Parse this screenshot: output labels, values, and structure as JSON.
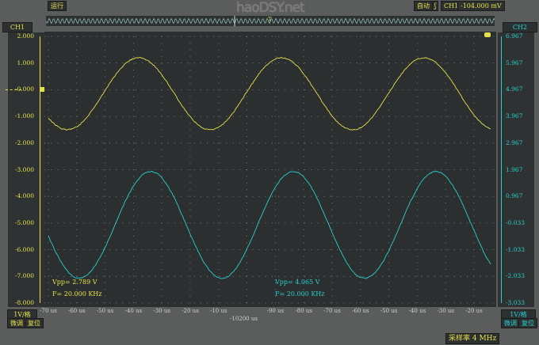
{
  "toolbar": {
    "run_label": "运行",
    "logo_text": "haoDSY.net",
    "trigger_mode": "自动",
    "trigger_edge_icon": "rising-edge-icon",
    "trigger_source": "CH1",
    "trigger_level": "-104.000 mV"
  },
  "ch1": {
    "label": "CH1",
    "scale": "1V/格",
    "fine_label": "微调",
    "reset_label": "复位",
    "color": "#e6e14a",
    "ticks": [
      "2.000",
      "1.000",
      "-0.000",
      "-1.000",
      "-2.000",
      "-3.000",
      "-4.000",
      "-5.000",
      "-6.000",
      "-7.000",
      "-8.000"
    ]
  },
  "ch2": {
    "label": "CH2",
    "scale": "1V/格",
    "fine_label": "微调",
    "reset_label": "复位",
    "color": "#2ad0d0",
    "ticks": [
      "6.967",
      "5.967",
      "4.967",
      "3.967",
      "2.967",
      "1.967",
      "0.967",
      "-0.033",
      "-1.033",
      "-2.033",
      "-3.033"
    ]
  },
  "x_axis": {
    "ticks": [
      "-70 us",
      "-60 us",
      "-50 us",
      "-40 us",
      "-30 us",
      "-20 us",
      "-10 us",
      "",
      "-90 us",
      "-80 us",
      "-70 us",
      "-60 us",
      "-50 us",
      "-40 us",
      "-30 us",
      "-20 us"
    ],
    "center_label": "-10200 us"
  },
  "measurements": {
    "ch1_vpp": "Vpp= 2.789 V",
    "ch1_freq": "F= 20.000 KHz",
    "ch2_vpp": "Vpp= 4.065 V",
    "ch2_freq": "F= 20.000 KHz"
  },
  "status": {
    "sample_rate": "采样率 4 MHz"
  },
  "chart_data": {
    "type": "line",
    "grid": true,
    "series": [
      {
        "name": "CH1",
        "freq_khz": 20,
        "max": 1.2,
        "min": -1.5,
        "axis": "left",
        "color": "#e6e14a"
      },
      {
        "name": "CH2",
        "freq_khz": 20,
        "max": 1.9,
        "min": -2.1,
        "axis": "right",
        "color": "#2ad0d0"
      }
    ]
  }
}
